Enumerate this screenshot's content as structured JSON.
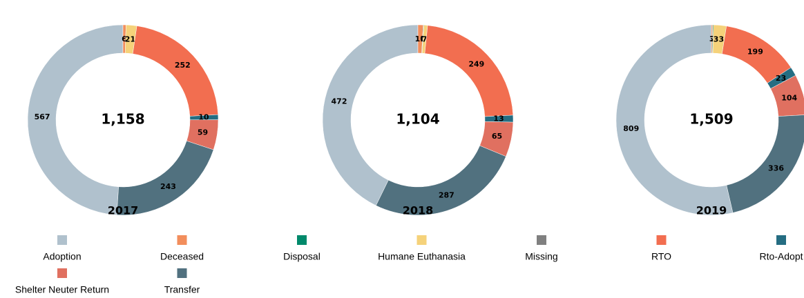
{
  "chart_data": [
    {
      "type": "donut",
      "title": "2017",
      "center_label": "1,158",
      "values": [
        567,
        6,
        null,
        21,
        null,
        252,
        10,
        59,
        243
      ]
    },
    {
      "type": "donut",
      "title": "2018",
      "center_label": "1,104",
      "values": [
        472,
        10,
        1,
        7,
        null,
        249,
        13,
        65,
        287
      ]
    },
    {
      "type": "donut",
      "title": "2019",
      "center_label": "1,509",
      "values": [
        809,
        3,
        2,
        33,
        null,
        199,
        23,
        104,
        336
      ]
    }
  ],
  "legend": {
    "categories": [
      "Adoption",
      "Deceased",
      "Disposal",
      "Humane Euthanasia",
      "Missing",
      "RTO",
      "Rto-Adopt",
      "Shelter Neuter Return",
      "Transfer"
    ],
    "colors": [
      "#b0c1cd",
      "#f28e5c",
      "#00896b",
      "#f5d27a",
      "#808080",
      "#f26e50",
      "#256d82",
      "#e07060",
      "#51717f"
    ]
  }
}
